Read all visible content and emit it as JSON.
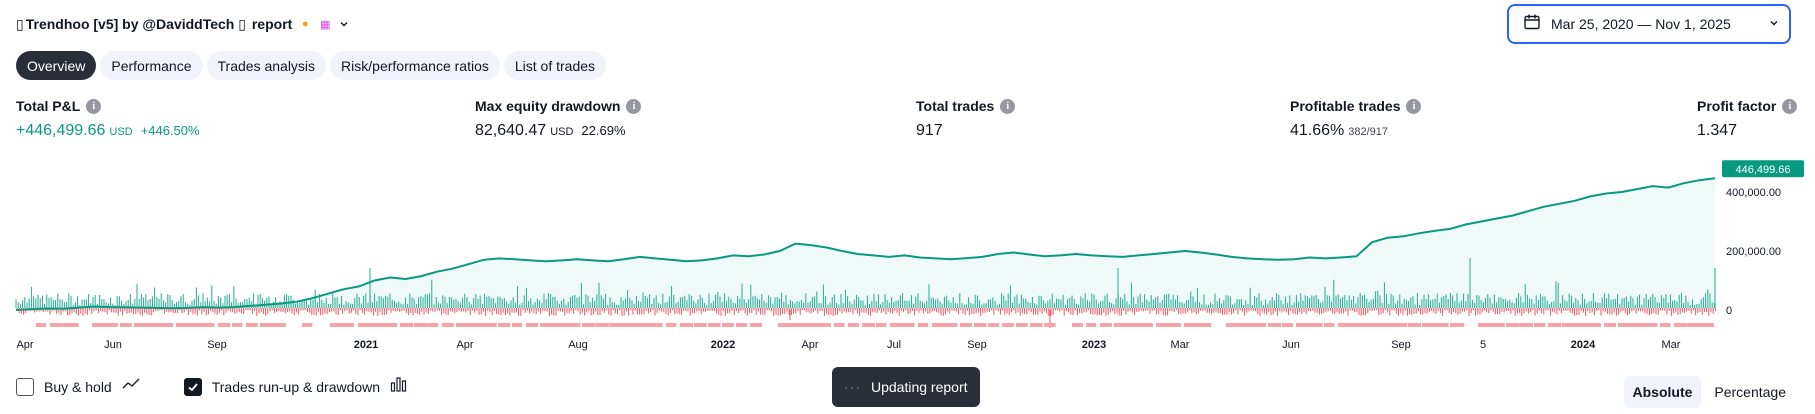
{
  "header": {
    "title": "Trendhoo [v5] by @DaviddTech",
    "suffix": "report",
    "icons": [
      "strategy-icon",
      "coin-icon",
      "calendar-badge-icon",
      "chevron-down-icon"
    ]
  },
  "date_range": {
    "label": "Mar 25, 2020 — Nov 1, 2025"
  },
  "tabs": [
    {
      "label": "Overview",
      "active": true
    },
    {
      "label": "Performance",
      "active": false
    },
    {
      "label": "Trades analysis",
      "active": false
    },
    {
      "label": "Risk/performance ratios",
      "active": false
    },
    {
      "label": "List of trades",
      "active": false
    }
  ],
  "metrics": {
    "total_pnl": {
      "label": "Total P&L",
      "value": "+446,499.66",
      "unit": "USD",
      "pct": "+446.50%"
    },
    "max_dd": {
      "label": "Max equity drawdown",
      "value": "82,640.47",
      "unit": "USD",
      "pct": "22.69%"
    },
    "total_trades": {
      "label": "Total trades",
      "value": "917"
    },
    "profitable": {
      "label": "Profitable trades",
      "value": "41.66%",
      "detail": "382/917"
    },
    "profit_factor": {
      "label": "Profit factor",
      "value": "1.347"
    }
  },
  "chart_data": {
    "type": "area",
    "title": "",
    "y_axis_labels": [
      "400,000.00",
      "200,000.00",
      "0"
    ],
    "y_ticks": [
      400000,
      200000,
      0
    ],
    "ylim": [
      -20000,
      470000
    ],
    "last_value_label": "446,499.66",
    "x_tick_labels": [
      {
        "label": "Apr",
        "bold": false
      },
      {
        "label": "Jun",
        "bold": false
      },
      {
        "label": "Sep",
        "bold": false
      },
      {
        "label": "2021",
        "bold": true
      },
      {
        "label": "Apr",
        "bold": false
      },
      {
        "label": "Aug",
        "bold": false
      },
      {
        "label": "2022",
        "bold": true
      },
      {
        "label": "Apr",
        "bold": false
      },
      {
        "label": "Jul",
        "bold": false
      },
      {
        "label": "Sep",
        "bold": false
      },
      {
        "label": "2023",
        "bold": true
      },
      {
        "label": "Mar",
        "bold": false
      },
      {
        "label": "Jun",
        "bold": false
      },
      {
        "label": "Sep",
        "bold": false
      },
      {
        "label": "5",
        "bold": false
      },
      {
        "label": "2024",
        "bold": true
      },
      {
        "label": "Mar",
        "bold": false
      }
    ],
    "series": [
      {
        "name": "Equity",
        "values": [
          0,
          3000,
          5000,
          4000,
          8000,
          12000,
          10000,
          9000,
          8000,
          7000,
          6000,
          7000,
          9000,
          8000,
          10000,
          14000,
          18000,
          22000,
          28000,
          40000,
          55000,
          70000,
          80000,
          100000,
          110000,
          105000,
          115000,
          130000,
          140000,
          155000,
          170000,
          175000,
          172000,
          168000,
          165000,
          168000,
          172000,
          168000,
          165000,
          172000,
          180000,
          175000,
          170000,
          165000,
          168000,
          175000,
          185000,
          182000,
          188000,
          200000,
          225000,
          220000,
          212000,
          200000,
          190000,
          185000,
          180000,
          185000,
          178000,
          175000,
          172000,
          176000,
          180000,
          190000,
          195000,
          188000,
          182000,
          185000,
          190000,
          185000,
          182000,
          180000,
          185000,
          190000,
          195000,
          200000,
          195000,
          188000,
          180000,
          175000,
          172000,
          170000,
          172000,
          178000,
          175000,
          178000,
          182000,
          230000,
          245000,
          250000,
          260000,
          268000,
          275000,
          290000,
          300000,
          310000,
          320000,
          335000,
          350000,
          360000,
          370000,
          385000,
          395000,
          400000,
          410000,
          420000,
          415000,
          430000,
          440000,
          446499
        ]
      },
      {
        "name": "Trades run-up & drawdown"
      }
    ]
  },
  "controls": {
    "buy_hold": {
      "label": "Buy & hold",
      "checked": false
    },
    "runup": {
      "label": "Trades run-up & drawdown",
      "checked": true
    }
  },
  "toast": {
    "label": "Updating report"
  },
  "scale_toggle": [
    {
      "label": "Absolute",
      "active": true
    },
    {
      "label": "Percentage",
      "active": false
    }
  ],
  "colors": {
    "accent": "#2962ff",
    "positive": "#089981",
    "negative": "#f7525f",
    "dark": "#2a2e39"
  }
}
